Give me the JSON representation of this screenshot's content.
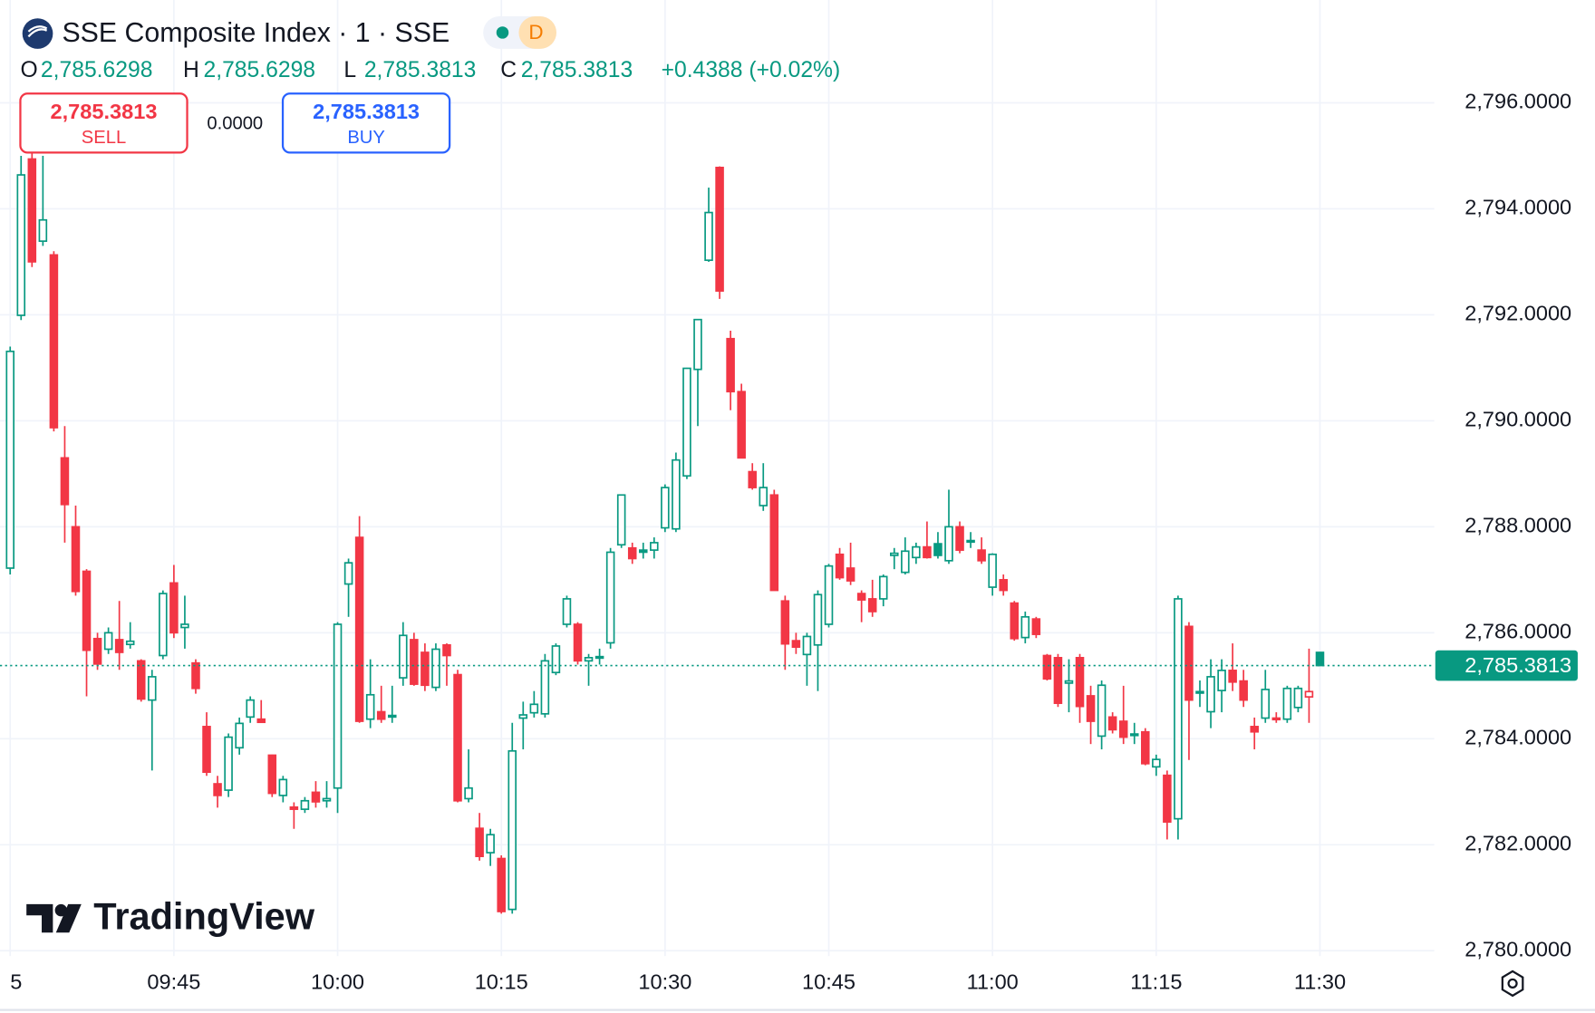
{
  "header": {
    "title": "SSE Composite Index · 1 · SSE",
    "badge": "D",
    "ohlc": [
      {
        "label": "O",
        "value": "2,785.6298"
      },
      {
        "label": "H",
        "value": "2,785.6298"
      },
      {
        "label": "L",
        "value": "2,785.3813"
      },
      {
        "label": "C",
        "value": "2,785.3813"
      }
    ],
    "change": "+0.4388 (+0.02%)"
  },
  "trade": {
    "sell_price": "2,785.3813",
    "sell_label": "SELL",
    "spread": "0.0000",
    "buy_price": "2,785.3813",
    "buy_label": "BUY"
  },
  "logo": "TradingView",
  "chart_data": {
    "type": "candlestick",
    "x": [
      "09:30",
      "09:31",
      "09:32",
      "09:33",
      "09:34",
      "09:35",
      "09:36",
      "09:37",
      "09:38",
      "09:39",
      "09:40",
      "09:41",
      "09:42",
      "09:43",
      "09:44",
      "09:45",
      "09:46",
      "09:47",
      "09:48",
      "09:49",
      "09:50",
      "09:51",
      "09:52",
      "09:53",
      "09:54",
      "09:55",
      "09:56",
      "09:57",
      "09:58",
      "09:59",
      "10:00",
      "10:01",
      "10:02",
      "10:03",
      "10:04",
      "10:05",
      "10:06",
      "10:07",
      "10:08",
      "10:09",
      "10:10",
      "10:11",
      "10:12",
      "10:13",
      "10:14",
      "10:15",
      "10:16",
      "10:17",
      "10:18",
      "10:19",
      "10:20",
      "10:21",
      "10:22",
      "10:23",
      "10:24",
      "10:25",
      "10:26",
      "10:27",
      "10:28",
      "10:29",
      "10:30",
      "10:31",
      "10:32",
      "10:33",
      "10:34",
      "10:35",
      "10:36",
      "10:37",
      "10:38",
      "10:39",
      "10:40",
      "10:41",
      "10:42",
      "10:43",
      "10:44",
      "10:45",
      "10:46",
      "10:47",
      "10:48",
      "10:49",
      "10:50",
      "10:51",
      "10:52",
      "10:53",
      "10:54",
      "10:55",
      "10:56",
      "10:57",
      "10:58",
      "10:59",
      "11:00",
      "11:01",
      "11:02",
      "11:03",
      "11:04",
      "11:05",
      "11:06",
      "11:07",
      "11:08",
      "11:09",
      "11:10",
      "11:11",
      "11:12",
      "11:13",
      "11:14",
      "11:15",
      "11:16",
      "11:17",
      "11:18",
      "11:19",
      "11:20",
      "11:21",
      "11:22",
      "11:23",
      "11:24",
      "11:25",
      "11:26",
      "11:27",
      "11:28",
      "11:29",
      "11:30"
    ],
    "open": [
      2787.22,
      2791.99,
      2794.94,
      2793.39,
      2793.13,
      2789.3,
      2788.0,
      2787.16,
      2785.89,
      2785.69,
      2785.87,
      2785.78,
      2785.47,
      2784.73,
      2785.57,
      2786.94,
      2786.1,
      2785.43,
      2784.23,
      2783.15,
      2783.03,
      2783.83,
      2784.41,
      2784.37,
      2783.69,
      2782.93,
      2782.71,
      2782.67,
      2782.99,
      2782.83,
      2783.07,
      2786.92,
      2787.8,
      2784.37,
      2784.51,
      2784.44,
      2785.15,
      2785.87,
      2785.63,
      2784.97,
      2785.77,
      2785.21,
      2782.87,
      2782.31,
      2781.85,
      2781.74,
      2780.78,
      2784.39,
      2784.49,
      2784.47,
      2785.25,
      2786.16,
      2786.16,
      2785.47,
      2785.53,
      2785.81,
      2787.66,
      2787.6,
      2787.56,
      2787.56,
      2787.98,
      2787.96,
      2788.96,
      2790.97,
      2793.03,
      2794.78,
      2791.55,
      2790.55,
      2789.04,
      2788.4,
      2788.6,
      2786.6,
      2785.85,
      2785.59,
      2785.77,
      2786.16,
      2787.48,
      2787.22,
      2786.74,
      2786.64,
      2786.64,
      2787.46,
      2787.14,
      2787.42,
      2787.62,
      2787.68,
      2787.36,
      2788.0,
      2787.74,
      2787.56,
      2786.86,
      2787.0,
      2786.56,
      2785.91,
      2786.26,
      2785.57,
      2785.53,
      2785.05,
      2785.53,
      2784.81,
      2784.05,
      2784.41,
      2784.33,
      2784.09,
      2784.13,
      2783.47,
      2783.31,
      2782.49,
      2786.12,
      2784.87,
      2784.51,
      2784.91,
      2785.29,
      2785.09,
      2784.23,
      2784.39,
      2784.37,
      2784.37,
      2784.59,
      2784.79,
      2785.6298
    ],
    "high": [
      2791.4,
      2795.0,
      2795.2,
      2795.0,
      2793.2,
      2789.9,
      2788.4,
      2787.2,
      2786.0,
      2786.1,
      2786.6,
      2786.2,
      2785.5,
      2785.3,
      2786.8,
      2787.28,
      2786.7,
      2785.5,
      2784.5,
      2783.3,
      2784.1,
      2784.4,
      2784.8,
      2784.73,
      2783.7,
      2783.3,
      2782.8,
      2782.9,
      2783.2,
      2783.2,
      2786.2,
      2787.4,
      2788.2,
      2785.5,
      2785.0,
      2785.0,
      2786.2,
      2786.0,
      2785.8,
      2785.8,
      2785.8,
      2785.3,
      2783.8,
      2782.6,
      2782.3,
      2781.8,
      2784.3,
      2784.7,
      2784.9,
      2785.6,
      2785.8,
      2786.7,
      2786.2,
      2785.6,
      2785.7,
      2787.6,
      2788.6,
      2787.7,
      2787.7,
      2787.8,
      2788.8,
      2789.4,
      2791.0,
      2791.91,
      2794.4,
      2794.8,
      2791.7,
      2790.7,
      2789.2,
      2789.2,
      2788.7,
      2786.7,
      2786.0,
      2786.0,
      2786.8,
      2787.3,
      2787.6,
      2787.7,
      2786.8,
      2787.0,
      2787.1,
      2787.6,
      2787.8,
      2787.7,
      2788.1,
      2787.9,
      2788.7,
      2788.1,
      2787.9,
      2787.8,
      2787.5,
      2787.1,
      2786.6,
      2786.4,
      2786.3,
      2785.6,
      2785.6,
      2785.5,
      2785.6,
      2785.0,
      2785.1,
      2784.5,
      2785.0,
      2784.3,
      2784.2,
      2783.7,
      2783.4,
      2786.7,
      2786.2,
      2785.1,
      2785.5,
      2785.5,
      2785.8,
      2785.3,
      2784.4,
      2785.3,
      2784.5,
      2785.0,
      2785.0,
      2785.7,
      2785.6298
    ],
    "low": [
      2787.1,
      2791.9,
      2792.9,
      2793.3,
      2789.8,
      2787.7,
      2786.7,
      2784.8,
      2785.3,
      2785.6,
      2785.3,
      2785.7,
      2784.7,
      2783.4,
      2785.5,
      2785.9,
      2785.7,
      2784.85,
      2783.3,
      2782.7,
      2782.9,
      2783.7,
      2784.3,
      2784.3,
      2782.9,
      2782.8,
      2782.3,
      2782.6,
      2782.7,
      2782.7,
      2782.6,
      2786.3,
      2784.3,
      2784.2,
      2784.3,
      2784.3,
      2785.0,
      2785.0,
      2784.9,
      2784.9,
      2785.0,
      2782.8,
      2782.8,
      2781.7,
      2781.6,
      2780.7,
      2780.7,
      2783.8,
      2784.4,
      2784.4,
      2785.2,
      2786.1,
      2785.4,
      2785.0,
      2785.4,
      2785.7,
      2787.6,
      2787.3,
      2787.4,
      2787.4,
      2787.9,
      2787.9,
      2788.9,
      2789.9,
      2793.0,
      2792.3,
      2790.2,
      2789.3,
      2788.7,
      2788.3,
      2786.8,
      2785.3,
      2785.6,
      2785.0,
      2784.9,
      2786.1,
      2787.0,
      2786.9,
      2786.2,
      2786.3,
      2786.5,
      2787.2,
      2787.1,
      2787.3,
      2787.4,
      2787.4,
      2787.3,
      2787.5,
      2787.6,
      2787.3,
      2786.7,
      2786.7,
      2785.85,
      2785.8,
      2785.9,
      2785.1,
      2784.6,
      2784.5,
      2784.3,
      2783.9,
      2783.8,
      2784.1,
      2783.9,
      2783.9,
      2783.5,
      2783.3,
      2782.1,
      2782.1,
      2783.6,
      2784.6,
      2784.2,
      2784.5,
      2784.9,
      2784.6,
      2783.8,
      2784.3,
      2784.3,
      2784.3,
      2784.5,
      2784.3,
      2785.3813
    ],
    "close": [
      2791.31,
      2794.64,
      2793.0,
      2793.79,
      2789.87,
      2788.42,
      2786.78,
      2785.67,
      2785.41,
      2786.0,
      2785.63,
      2785.84,
      2784.75,
      2785.17,
      2786.74,
      2786.0,
      2786.16,
      2784.95,
      2783.37,
      2782.93,
      2784.03,
      2784.29,
      2784.73,
      2784.31,
      2782.97,
      2783.23,
      2782.67,
      2782.83,
      2782.81,
      2782.87,
      2786.16,
      2787.32,
      2784.33,
      2784.83,
      2784.37,
      2784.41,
      2785.95,
      2785.03,
      2785.01,
      2785.69,
      2785.57,
      2782.83,
      2783.07,
      2781.78,
      2782.19,
      2780.74,
      2783.77,
      2784.45,
      2784.65,
      2785.47,
      2785.75,
      2786.64,
      2785.47,
      2785.53,
      2785.55,
      2787.52,
      2788.6,
      2787.4,
      2787.52,
      2787.7,
      2788.74,
      2789.26,
      2790.99,
      2791.91,
      2793.93,
      2792.45,
      2790.55,
      2789.3,
      2788.74,
      2788.74,
      2786.8,
      2785.79,
      2785.73,
      2785.93,
      2786.72,
      2787.26,
      2787.04,
      2786.98,
      2786.62,
      2786.4,
      2787.06,
      2787.5,
      2787.54,
      2787.62,
      2787.42,
      2787.46,
      2788.0,
      2787.56,
      2787.72,
      2787.36,
      2787.48,
      2786.8,
      2785.89,
      2786.3,
      2785.97,
      2785.13,
      2784.67,
      2785.09,
      2784.61,
      2784.33,
      2785.01,
      2784.17,
      2784.03,
      2784.07,
      2783.53,
      2783.61,
      2782.43,
      2786.64,
      2784.73,
      2784.89,
      2785.17,
      2785.29,
      2785.07,
      2784.73,
      2784.13,
      2784.93,
      2784.39,
      2784.95,
      2784.95,
      2784.89,
      2785.3813
    ],
    "up_color": "#089981",
    "down_color": "#f23645",
    "ylim": [
      2779.9,
      2797.94
    ],
    "yticks": [
      {
        "value": 2780,
        "label": "2,780.0000"
      },
      {
        "value": 2782,
        "label": "2,782.0000"
      },
      {
        "value": 2784,
        "label": "2,784.0000"
      },
      {
        "value": 2786,
        "label": "2,786.0000"
      },
      {
        "value": 2788,
        "label": "2,788.0000"
      },
      {
        "value": 2790,
        "label": "2,790.0000"
      },
      {
        "value": 2792,
        "label": "2,792.0000"
      },
      {
        "value": 2794,
        "label": "2,794.0000"
      },
      {
        "value": 2796,
        "label": "2,796.0000"
      }
    ],
    "xticks": [
      {
        "value": "09:30",
        "label": "5"
      },
      "09:45",
      "10:00",
      "10:15",
      "10:30",
      "10:45",
      "11:00",
      "11:15",
      "11:30"
    ],
    "last_price": {
      "value": 2785.3813,
      "label": "2,785.3813"
    },
    "grid": true
  }
}
